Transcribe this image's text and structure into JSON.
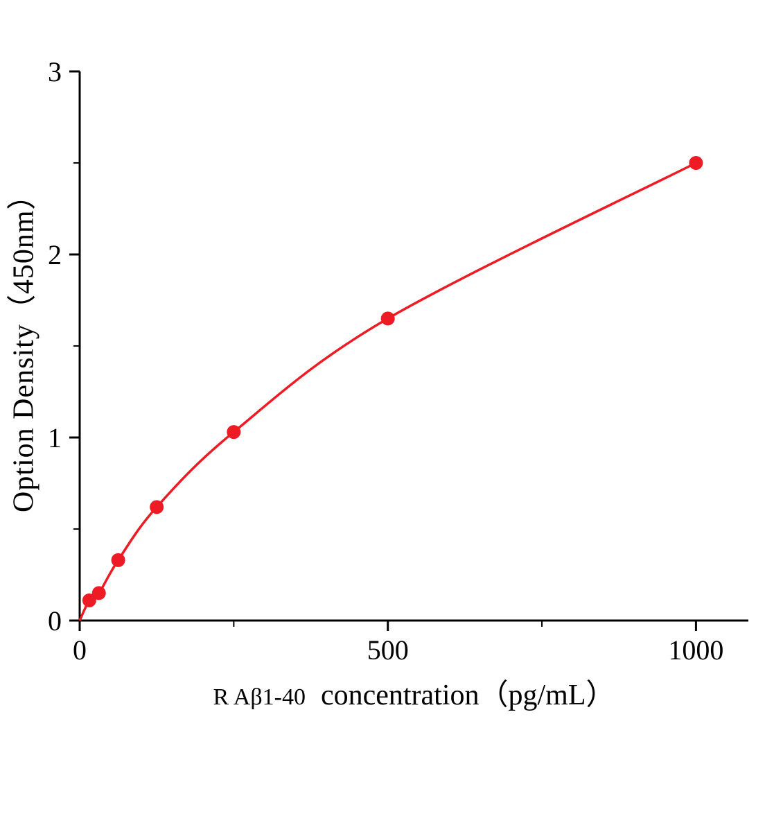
{
  "chart_data": {
    "type": "line+scatter",
    "title": "",
    "xlabel_prefix": "R Aβ1-40",
    "xlabel_main": "concentration（pg/mL）",
    "xlabel": "R Aβ1-40  concentration（pg/mL）",
    "ylabel": "Option Density（450nm）",
    "xlim": [
      0,
      1085
    ],
    "ylim": [
      0,
      3
    ],
    "x_major_ticks": [
      0,
      500,
      1000
    ],
    "x_major_tick_labels": [
      "0",
      "500",
      "1000"
    ],
    "x_minor_ticks": [
      250,
      750
    ],
    "y_major_ticks": [
      0,
      1,
      2,
      3
    ],
    "y_major_tick_labels": [
      "0",
      "1",
      "2",
      "3"
    ],
    "y_minor_ticks": [
      0.5,
      1.5,
      2.5
    ],
    "grid": false,
    "legend": "none",
    "curve": {
      "x": [
        0,
        15.6,
        31.2,
        62.5,
        125,
        250,
        500,
        1000
      ],
      "y": [
        0.0,
        0.11,
        0.15,
        0.33,
        0.62,
        1.03,
        1.65,
        2.5
      ]
    },
    "markers": {
      "x": [
        15.6,
        31.2,
        62.5,
        125,
        250,
        500,
        1000
      ],
      "y": [
        0.11,
        0.15,
        0.33,
        0.62,
        1.03,
        1.65,
        2.5
      ]
    },
    "colors": {
      "line": "#ed1c24",
      "marker": "#ed1c24",
      "axis": "#000000"
    }
  }
}
